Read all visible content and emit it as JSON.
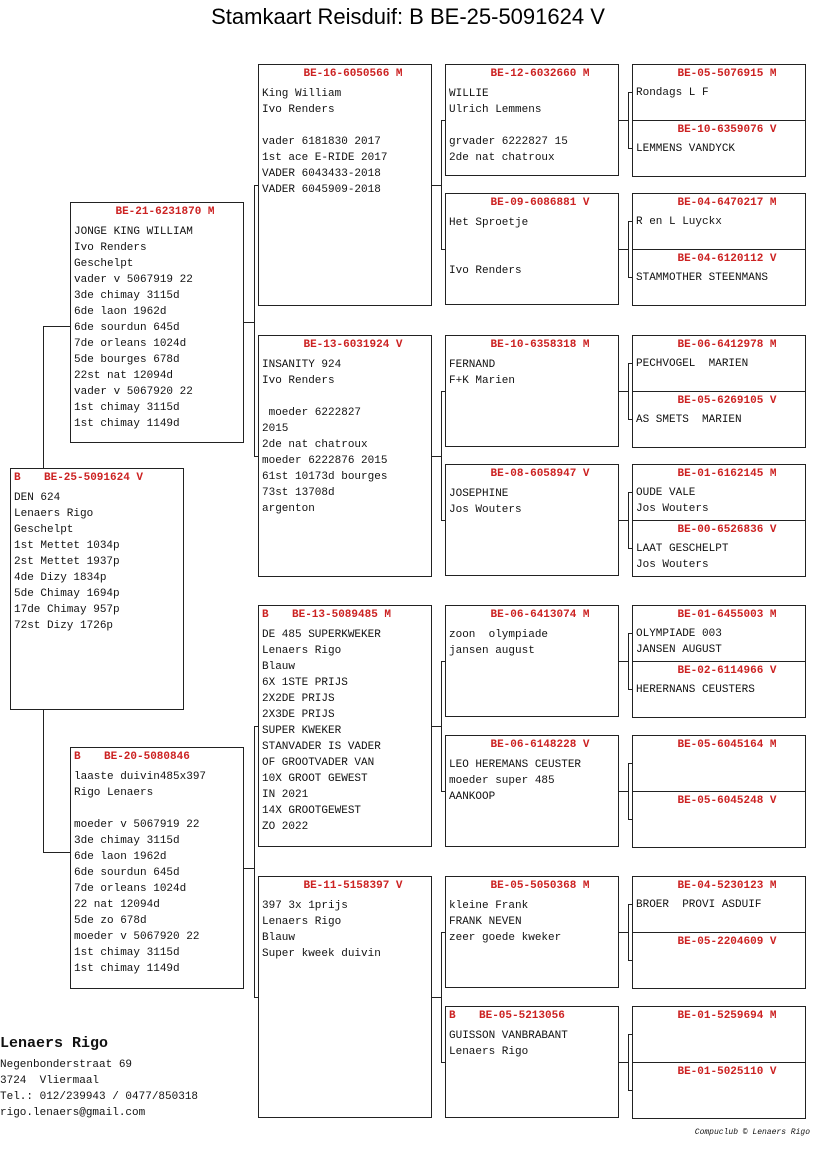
{
  "title": "Stamkaart Reisduif: B    BE-25-5091624 V",
  "colors": {
    "ring_header": "#cc2222",
    "text": "#111111",
    "border": "#222222"
  },
  "pedigree": {
    "subject": {
      "prefix": "B",
      "ring": "BE-25-5091624 V",
      "lines": [
        "DEN 624",
        "Lenaers Rigo",
        "Geschelpt",
        "1st Mettet 1034p",
        "2st Mettet 1937p",
        "4de Dizy 1834p",
        "5de Chimay 1694p",
        "17de Chimay 957p",
        "72st Dizy 1726p"
      ]
    },
    "parents": [
      {
        "prefix": "",
        "ring": "BE-21-6231870 M",
        "lines": [
          "JONGE KING WILLIAM",
          "Ivo Renders",
          "Geschelpt",
          "vader v 5067919 22",
          "3de chimay 3115d",
          "6de laon 1962d",
          "6de sourdun 645d",
          "7de orleans 1024d",
          "5de bourges 678d",
          "22st nat 12094d",
          "vader v 5067920 22",
          "1st chimay 3115d",
          "1st chimay 1149d"
        ]
      },
      {
        "prefix": "B",
        "ring": "BE-20-5080846",
        "lines": [
          "laaste duivin485x397",
          "Rigo Lenaers",
          "",
          "moeder v 5067919 22",
          "3de chimay 3115d",
          "6de laon 1962d",
          "6de sourdun 645d",
          "7de orleans 1024d",
          "22 nat 12094d",
          "5de zo 678d",
          "moeder v 5067920 22",
          "1st chimay 3115d",
          "1st chimay 1149d"
        ]
      }
    ],
    "grandparents": [
      {
        "prefix": "",
        "ring": "BE-16-6050566 M",
        "lines": [
          "King William",
          "Ivo Renders",
          "",
          "vader 6181830 2017",
          "1st ace E-RIDE 2017",
          "VADER 6043433-2018",
          "VADER 6045909-2018"
        ]
      },
      {
        "prefix": "",
        "ring": "BE-13-6031924 V",
        "lines": [
          "INSANITY 924",
          "Ivo Renders",
          "",
          " moeder 6222827",
          "2015",
          "2de nat chatroux",
          "moeder 6222876 2015",
          "61st 10173d bourges",
          "73st 13708d",
          "argenton"
        ]
      },
      {
        "prefix": "B",
        "ring": "BE-13-5089485 M",
        "lines": [
          "DE 485 SUPERKWEKER",
          "Lenaers Rigo",
          "Blauw",
          "6X 1STE PRIJS",
          "2X2DE PRIJS",
          "2X3DE PRIJS",
          "SUPER KWEKER",
          "STANVADER IS VADER",
          "OF GROOTVADER VAN",
          "10X GROOT GEWEST",
          "IN 2021",
          "14X GROOTGEWEST",
          "ZO 2022"
        ]
      },
      {
        "prefix": "",
        "ring": "BE-11-5158397 V",
        "lines": [
          "397 3x 1prijs",
          "Lenaers Rigo",
          "Blauw",
          "Super kweek duivin"
        ]
      }
    ],
    "great_grandparents": [
      {
        "prefix": "",
        "ring": "BE-12-6032660 M",
        "lines": [
          "WILLIE",
          "Ulrich Lemmens",
          "",
          "grvader 6222827 15",
          "2de nat chatroux"
        ]
      },
      {
        "prefix": "",
        "ring": "BE-09-6086881 V",
        "lines": [
          "Het Sproetje",
          "",
          "",
          "Ivo Renders"
        ]
      },
      {
        "prefix": "",
        "ring": "BE-10-6358318 M",
        "lines": [
          "FERNAND",
          "F+K Marien"
        ]
      },
      {
        "prefix": "",
        "ring": "BE-08-6058947 V",
        "lines": [
          "JOSEPHINE",
          "Jos Wouters"
        ]
      },
      {
        "prefix": "",
        "ring": "BE-06-6413074 M",
        "lines": [
          "zoon  olympiade",
          "jansen august"
        ]
      },
      {
        "prefix": "",
        "ring": "BE-06-6148228 V",
        "lines": [
          "LEO HEREMANS CEUSTER",
          "moeder super 485",
          "AANKOOP"
        ]
      },
      {
        "prefix": "",
        "ring": "BE-05-5050368 M",
        "lines": [
          "kleine Frank",
          "FRANK NEVEN",
          "zeer goede kweker"
        ]
      },
      {
        "prefix": "B",
        "ring": "BE-05-5213056",
        "lines": [
          "GUISSON VANBRABANT",
          "Lenaers Rigo"
        ]
      }
    ],
    "great_great_grandparents": [
      {
        "prefix": "",
        "ring": "BE-05-5076915 M",
        "lines": [
          "Rondags L F"
        ]
      },
      {
        "prefix": "",
        "ring": "BE-10-6359076 V",
        "lines": [
          "LEMMENS VANDYCK"
        ]
      },
      {
        "prefix": "",
        "ring": "BE-04-6470217 M",
        "lines": [
          "R en L Luyckx"
        ]
      },
      {
        "prefix": "",
        "ring": "BE-04-6120112 V",
        "lines": [
          "STAMMOTHER STEENMANS"
        ]
      },
      {
        "prefix": "",
        "ring": "BE-06-6412978 M",
        "lines": [
          "PECHVOGEL  MARIEN"
        ]
      },
      {
        "prefix": "",
        "ring": "BE-05-6269105 V",
        "lines": [
          "AS SMETS  MARIEN"
        ]
      },
      {
        "prefix": "",
        "ring": "BE-01-6162145 M",
        "lines": [
          "OUDE VALE",
          "Jos Wouters"
        ]
      },
      {
        "prefix": "",
        "ring": "BE-00-6526836 V",
        "lines": [
          "LAAT GESCHELPT",
          "Jos Wouters"
        ]
      },
      {
        "prefix": "",
        "ring": "BE-01-6455003 M",
        "lines": [
          "OLYMPIADE 003",
          "JANSEN AUGUST"
        ]
      },
      {
        "prefix": "",
        "ring": "BE-02-6114966 V",
        "lines": [
          "HERERNANS CEUSTERS"
        ]
      },
      {
        "prefix": "",
        "ring": "BE-05-6045164 M",
        "lines": []
      },
      {
        "prefix": "",
        "ring": "BE-05-6045248 V",
        "lines": []
      },
      {
        "prefix": "",
        "ring": "BE-04-5230123 M",
        "lines": [
          "BROER  PROVI ASDUIF"
        ]
      },
      {
        "prefix": "",
        "ring": "BE-05-2204609 V",
        "lines": []
      },
      {
        "prefix": "",
        "ring": "BE-01-5259694 M",
        "lines": []
      },
      {
        "prefix": "",
        "ring": "BE-01-5025110 V",
        "lines": []
      }
    ]
  },
  "owner": {
    "name": "Lenaers Rigo",
    "street": "Negenbonderstraat 69",
    "city": "3724  Vliermaal",
    "phone": "Tel.: 012/239943 / 0477/850318",
    "email": "rigo.lenaers@gmail.com"
  },
  "credit": "Compuclub © Lenaers Rigo"
}
